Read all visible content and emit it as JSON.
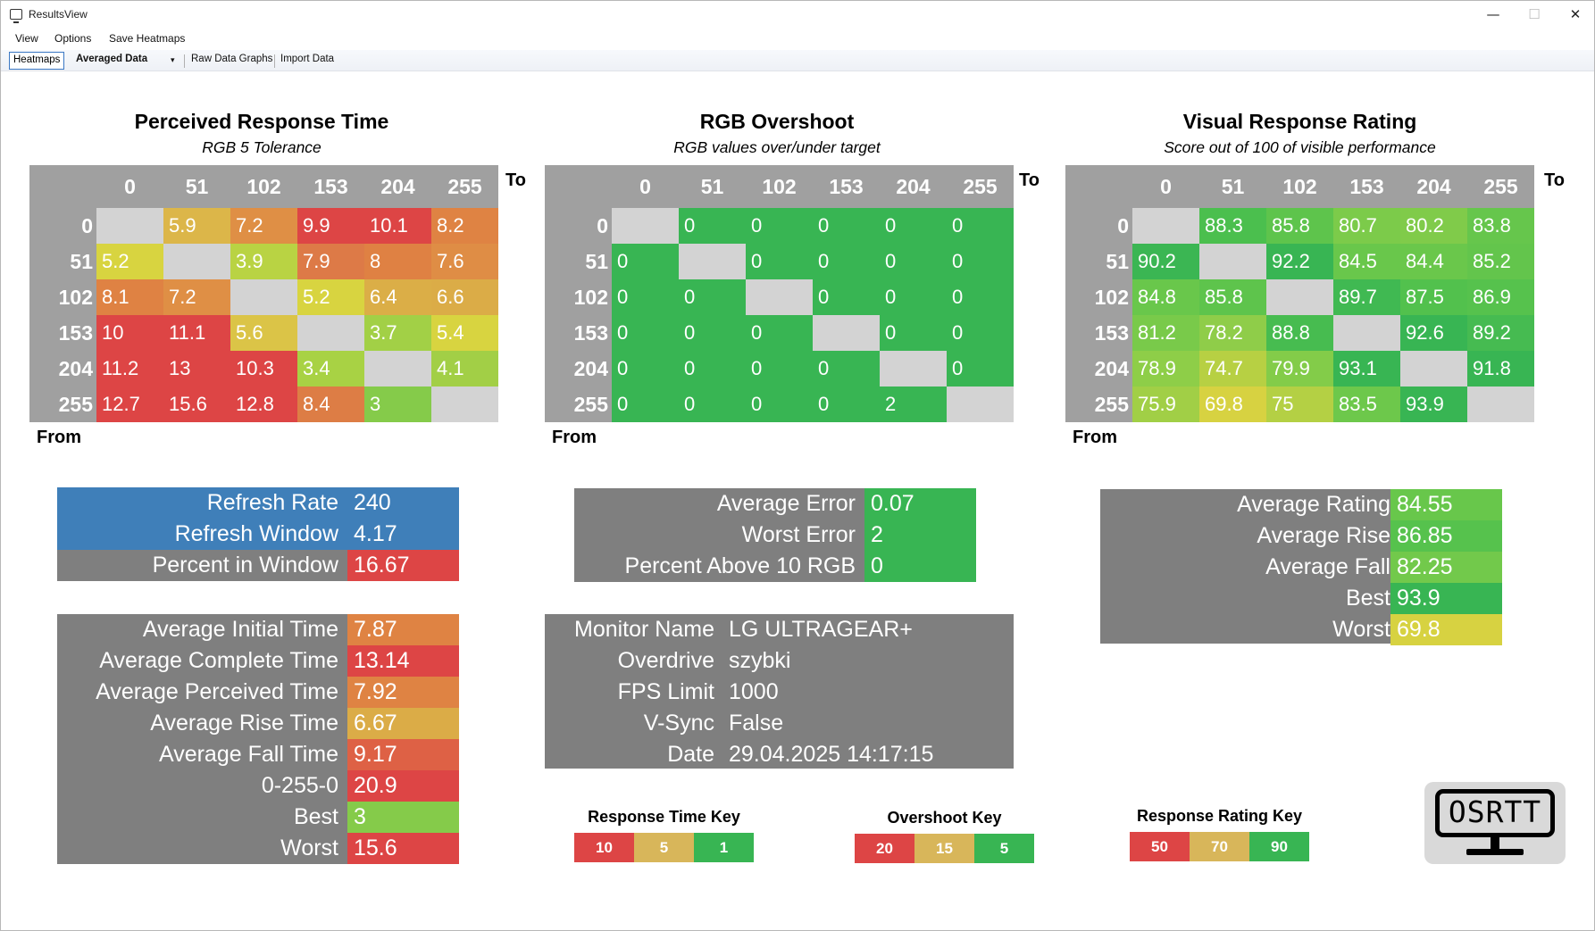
{
  "window": {
    "title": "ResultsView",
    "minimize": "—",
    "maximize": "☐",
    "close": "✕"
  },
  "menu": {
    "items": [
      "View",
      "Options",
      "Save Heatmaps"
    ]
  },
  "toolbar": {
    "heatmaps": "Heatmaps",
    "mode_selected": "Averaged Data",
    "dropdown_arrow": "▾",
    "raw_graphs": "Raw Data Graphs",
    "import": "Import Data"
  },
  "axis_labels": {
    "to": "To",
    "from": "From"
  },
  "heatmaps": [
    {
      "title": "Perceived Response Time",
      "subtitle": "RGB 5 Tolerance",
      "columns": [
        "0",
        "51",
        "102",
        "153",
        "204",
        "255"
      ],
      "rows": [
        "0",
        "51",
        "102",
        "153",
        "204",
        "255"
      ],
      "cells": [
        [
          "",
          "5.9",
          "7.2",
          "9.9",
          "10.1",
          "8.2"
        ],
        [
          "5.2",
          "",
          "3.9",
          "7.9",
          "8",
          "7.6"
        ],
        [
          "8.1",
          "7.2",
          "",
          "5.2",
          "6.4",
          "6.6"
        ],
        [
          "10",
          "11.1",
          "5.6",
          "",
          "3.7",
          "5.4"
        ],
        [
          "11.2",
          "13",
          "10.3",
          "3.4",
          "",
          "4.1"
        ],
        [
          "12.7",
          "15.6",
          "12.8",
          "8.4",
          "3",
          ""
        ]
      ],
      "colors": [
        [
          "",
          "#dcb649",
          "#df8f45",
          "#dd4545",
          "#dd4545",
          "#df8343"
        ],
        [
          "#d8d440",
          "",
          "#b9d343",
          "#dd7a47",
          "#df8143",
          "#df8d45"
        ],
        [
          "#df8243",
          "#df8f45",
          "",
          "#d8d440",
          "#dbae47",
          "#dbac47"
        ],
        [
          "#dd4545",
          "#dd4545",
          "#dbc447",
          "",
          "#a2d046",
          "#d8d440"
        ],
        [
          "#dd4545",
          "#dd4545",
          "#dd4545",
          "#a8d244",
          "",
          "#a2cf46"
        ],
        [
          "#dd4545",
          "#dd4545",
          "#dd4545",
          "#dd7d45",
          "#85cb4a",
          ""
        ]
      ]
    },
    {
      "title": "RGB Overshoot",
      "subtitle": "RGB values over/under target",
      "columns": [
        "0",
        "51",
        "102",
        "153",
        "204",
        "255"
      ],
      "rows": [
        "0",
        "51",
        "102",
        "153",
        "204",
        "255"
      ],
      "cells": [
        [
          "",
          "0",
          "0",
          "0",
          "0",
          "0"
        ],
        [
          "0",
          "",
          "0",
          "0",
          "0",
          "0"
        ],
        [
          "0",
          "0",
          "",
          "0",
          "0",
          "0"
        ],
        [
          "0",
          "0",
          "0",
          "",
          "0",
          "0"
        ],
        [
          "0",
          "0",
          "0",
          "0",
          "",
          "0"
        ],
        [
          "0",
          "0",
          "0",
          "0",
          "2",
          ""
        ]
      ],
      "fill_color": "#38b553"
    },
    {
      "title": "Visual Response Rating",
      "subtitle": "Score out of 100 of visible performance",
      "columns": [
        "0",
        "51",
        "102",
        "153",
        "204",
        "255"
      ],
      "rows": [
        "0",
        "51",
        "102",
        "153",
        "204",
        "255"
      ],
      "cells": [
        [
          "",
          "88.3",
          "85.8",
          "80.7",
          "80.2",
          "83.8"
        ],
        [
          "90.2",
          "",
          "92.2",
          "84.5",
          "84.4",
          "85.2"
        ],
        [
          "84.8",
          "85.8",
          "",
          "89.7",
          "87.5",
          "86.9"
        ],
        [
          "81.2",
          "78.2",
          "88.8",
          "",
          "92.6",
          "89.2"
        ],
        [
          "78.9",
          "74.7",
          "79.9",
          "93.1",
          "",
          "91.8"
        ],
        [
          "75.9",
          "69.8",
          "75",
          "83.5",
          "93.9",
          ""
        ]
      ],
      "colors": [
        [
          "",
          "#4bbf4e",
          "#5ec44c",
          "#7ccb4a",
          "#80cb4a",
          "#66c64c"
        ],
        [
          "#3bb653",
          "",
          "#38b553",
          "#69c74b",
          "#6ac74b",
          "#63c54c"
        ],
        [
          "#69c74b",
          "#5ec44c",
          "",
          "#40b952",
          "#52c14d",
          "#56c24d"
        ],
        [
          "#79ca4a",
          "#8fcd49",
          "#47bc50",
          "",
          "#38b553",
          "#46bb51"
        ],
        [
          "#8ece48",
          "#b7d043",
          "#83cc49",
          "#38b553",
          "",
          "#38b553"
        ],
        [
          "#a1cf46",
          "#d7d241",
          "#b4d044",
          "#6dc84b",
          "#38b553",
          ""
        ]
      ]
    }
  ],
  "refresh_panel": {
    "rows": [
      {
        "label": "Refresh Rate",
        "value": "240",
        "bg": "#3f7fb9",
        "val_bg": "#3f7fb9"
      },
      {
        "label": "Refresh Window",
        "value": "4.17",
        "bg": "#3f7fb9",
        "val_bg": "#3f7fb9"
      },
      {
        "label": "Percent in Window",
        "value": "16.67",
        "bg": "#7f7f7f",
        "val_bg": "#dd4545"
      }
    ]
  },
  "overshoot_panel": {
    "rows": [
      {
        "label": "Average Error",
        "value": "0.07",
        "val_bg": "#38b553"
      },
      {
        "label": "Worst Error",
        "value": "2",
        "val_bg": "#38b553"
      },
      {
        "label": "Percent Above 10 RGB",
        "value": "0",
        "val_bg": "#38b553"
      }
    ]
  },
  "rating_panel": {
    "rows": [
      {
        "label": "Average Rating",
        "value": "84.55",
        "val_bg": "#68c74b"
      },
      {
        "label": "Average Rise",
        "value": "86.85",
        "val_bg": "#56c24d"
      },
      {
        "label": "Average Fall",
        "value": "82.25",
        "val_bg": "#72c94b"
      },
      {
        "label": "Best",
        "value": "93.9",
        "val_bg": "#38b553"
      },
      {
        "label": "Worst",
        "value": "69.8",
        "val_bg": "#d7d241"
      }
    ]
  },
  "times_panel": {
    "rows": [
      {
        "label": "Average Initial Time",
        "value": "7.87",
        "val_bg": "#df8343"
      },
      {
        "label": "Average Complete Time",
        "value": "13.14",
        "val_bg": "#dd4545"
      },
      {
        "label": "Average Perceived Time",
        "value": "7.92",
        "val_bg": "#df8343"
      },
      {
        "label": "Average Rise Time",
        "value": "6.67",
        "val_bg": "#dbac47"
      },
      {
        "label": "Average Fall Time",
        "value": "9.17",
        "val_bg": "#de6145"
      },
      {
        "label": "0-255-0",
        "value": "20.9",
        "val_bg": "#dd4545"
      },
      {
        "label": "Best",
        "value": "3",
        "val_bg": "#85cb4a"
      },
      {
        "label": "Worst",
        "value": "15.6",
        "val_bg": "#dd4545"
      }
    ]
  },
  "monitor_panel": {
    "rows": [
      {
        "label": "Monitor Name",
        "value": "LG ULTRAGEAR+"
      },
      {
        "label": "Overdrive",
        "value": "szybki"
      },
      {
        "label": "FPS Limit",
        "value": "1000"
      },
      {
        "label": "V-Sync",
        "value": "False"
      },
      {
        "label": "Date",
        "value": "29.04.2025 14:17:15"
      }
    ]
  },
  "keys": [
    {
      "title": "Response Time Key",
      "items": [
        {
          "label": "10",
          "color": "#dd4545"
        },
        {
          "label": "5",
          "color": "#d8b65a"
        },
        {
          "label": "1",
          "color": "#38b553"
        }
      ]
    },
    {
      "title": "Overshoot Key",
      "items": [
        {
          "label": "20",
          "color": "#dd4545"
        },
        {
          "label": "15",
          "color": "#d8b65a"
        },
        {
          "label": "5",
          "color": "#38b553"
        }
      ]
    },
    {
      "title": "Response Rating Key",
      "items": [
        {
          "label": "50",
          "color": "#dd4545"
        },
        {
          "label": "70",
          "color": "#d8b65a"
        },
        {
          "label": "90",
          "color": "#38b553"
        }
      ]
    }
  ],
  "logo": {
    "text": "OSRTT"
  }
}
